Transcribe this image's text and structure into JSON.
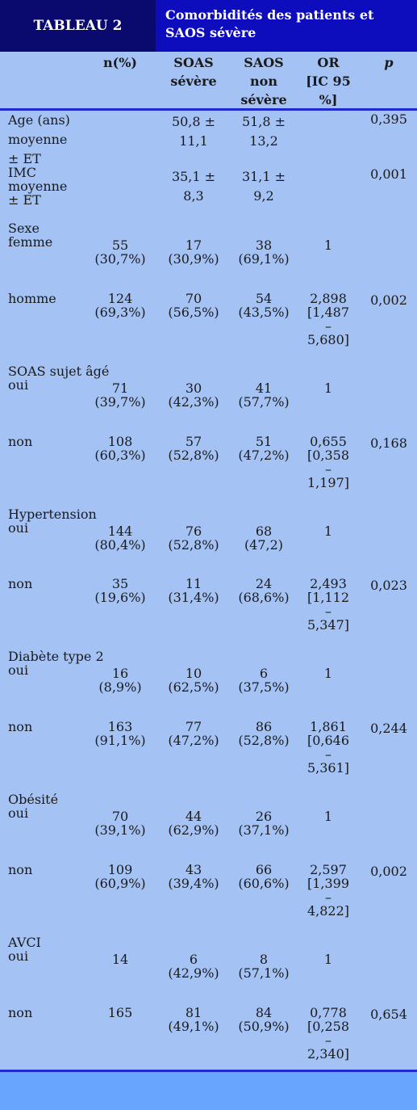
{
  "header": {
    "tag": "TABLEAU 2",
    "title": "Comorbidités des patients et SAOS sévère"
  },
  "columns": [
    "",
    "n(%)",
    "SOAS\nsévère",
    "SAOS\nnon\nsévère",
    "OR\n[IC 95\n%]",
    "p"
  ],
  "cells": [
    {
      "label": "Age (ans)\nmoyenne\n± ET",
      "n": "",
      "s1": "50,8 ±\n11,1",
      "s2": "51,8 ±\n13,2",
      "or": "",
      "p": "0,395"
    },
    {
      "label": "IMC\nmoyenne\n± ET",
      "n": "",
      "s1": "35,1 ±\n8,3",
      "s2": "31,1 ±\n9,2",
      "or": "",
      "p": "0,001"
    },
    {
      "label": "Sexe\nfemme",
      "n": "55\n(30,7%)",
      "s1": "17\n(30,9%)",
      "s2": "38\n(69,1%)",
      "or": "1",
      "p": ""
    },
    {
      "label": "homme",
      "n": "124\n(69,3%)",
      "s1": "70\n(56,5%)",
      "s2": "54\n(43,5%)",
      "or": "2,898\n[1,487\n–\n5,680]",
      "p": "0,002"
    },
    {
      "label": "SOAS sujet âgé\noui",
      "n": "71\n(39,7%)",
      "s1": "30\n(42,3%)",
      "s2": "41\n(57,7%)",
      "or": "1",
      "p": ""
    },
    {
      "label": "non",
      "n": "108\n(60,3%)",
      "s1": "57\n(52,8%)",
      "s2": "51\n(47,2%)",
      "or": "0,655\n[0,358\n–\n1,197]",
      "p": "0,168"
    },
    {
      "label": "Hypertension\noui",
      "n": "144\n(80,4%)",
      "s1": "76\n(52,8%)",
      "s2": "68\n(47,2)",
      "or": "1",
      "p": ""
    },
    {
      "label": "non",
      "n": "35\n(19,6%)",
      "s1": "11\n(31,4%)",
      "s2": "24\n(68,6%)",
      "or": "2,493\n[1,112\n–\n5,347]",
      "p": "0,023"
    },
    {
      "label": "Diabète type 2\noui",
      "n": "16\n(8,9%)",
      "s1": "10\n(62,5%)",
      "s2": "6\n(37,5%)",
      "or": "1",
      "p": ""
    },
    {
      "label": "non",
      "n": "163\n(91,1%)",
      "s1": "77\n(47,2%)",
      "s2": "86\n(52,8%)",
      "or": "1,861\n[0,646\n–\n5,361]",
      "p": "0,244"
    },
    {
      "label": "Obésité\noui",
      "n": "70\n(39,1%)",
      "s1": "44\n(62,9%)",
      "s2": "26\n(37,1%)",
      "or": "1",
      "p": ""
    },
    {
      "label": "non",
      "n": "109\n(60,9%)",
      "s1": "43\n(39,4%)",
      "s2": "66\n(60,6%)",
      "or": "2,597\n[1,399\n–\n4,822]",
      "p": "0,002"
    },
    {
      "label": "AVCI\noui",
      "n": "14",
      "s1": "6\n(42,9%)",
      "s2": "8\n(57,1%)",
      "or": "1",
      "p": ""
    },
    {
      "label": "non",
      "n": "165",
      "s1": "81\n(49,1%)",
      "s2": "84\n(50,9%)",
      "or": "0,778\n[0,258\n–\n2,340]",
      "p": "0,654"
    }
  ]
}
